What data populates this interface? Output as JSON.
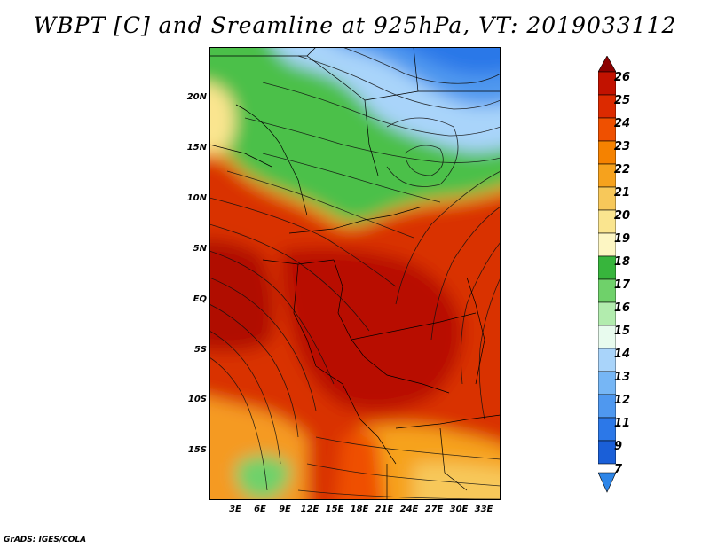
{
  "title": "WBPT [C] and Sreamline at 925hPa, VT: 2019033112",
  "footer": "GrADS: IGES/COLA",
  "lat_labels": [
    "20N",
    "15N",
    "10N",
    "5N",
    "EQ",
    "5S",
    "10S",
    "15S"
  ],
  "lon_labels": [
    "3E",
    "6E",
    "9E",
    "12E",
    "15E",
    "18E",
    "21E",
    "24E",
    "27E",
    "30E",
    "33E"
  ],
  "colorbar": {
    "labels": [
      "26",
      "25",
      "24",
      "23",
      "22",
      "21",
      "20",
      "19",
      "18",
      "17",
      "16",
      "15",
      "14",
      "13",
      "12",
      "11",
      "9",
      "7"
    ],
    "colors": [
      "#a50000",
      "#c21200",
      "#dc2a00",
      "#ef5000",
      "#f58200",
      "#f6a21d",
      "#f7c85a",
      "#fae58f",
      "#fdf6c3",
      "#37b53c",
      "#6fd16a",
      "#b2ecae",
      "#e8fbee",
      "#a9d4fa",
      "#76b6f5",
      "#4f98ef",
      "#2c78e8",
      "#1a5fd8"
    ],
    "top_arrow_color": "#8c0000",
    "bottom_arrow_color": "#2e86e8"
  }
}
